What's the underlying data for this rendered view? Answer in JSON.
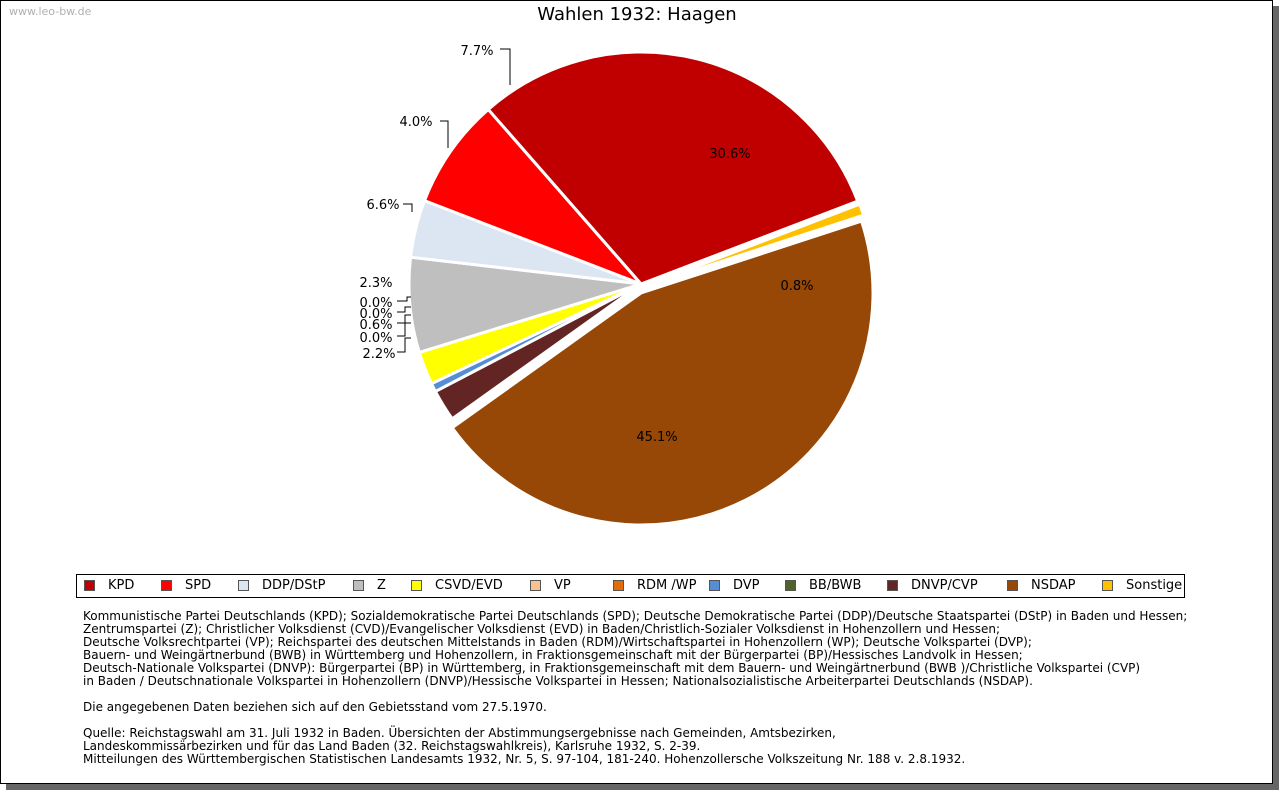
{
  "watermark": "www.leo-bw.de",
  "chart_data": {
    "type": "pie",
    "title": "Wahlen 1932: Haagen",
    "slices": [
      {
        "name": "KPD",
        "value": 30.6,
        "label": "30.6%",
        "color": "#c00000"
      },
      {
        "name": "Sonstige",
        "value": 0.8,
        "label": "0.8%",
        "color": "#ffc000"
      },
      {
        "name": "NSDAP",
        "value": 45.1,
        "label": "45.1%",
        "color": "#974706"
      },
      {
        "name": "DNVP/CVP",
        "value": 2.2,
        "label": "2.2%",
        "color": "#632523"
      },
      {
        "name": "BB/BWB",
        "value": 0.0,
        "label": "0.0%",
        "color": "#4f6228"
      },
      {
        "name": "DVP",
        "value": 0.6,
        "label": "0.6%",
        "color": "#558ed5"
      },
      {
        "name": "RDM /WP",
        "value": 0.0,
        "label": "0.0%",
        "color": "#e46c0a"
      },
      {
        "name": "VP",
        "value": 0.0,
        "label": "0.0%",
        "color": "#fac090"
      },
      {
        "name": "CSVD/EVD",
        "value": 2.3,
        "label": "2.3%",
        "color": "#ffff00"
      },
      {
        "name": "Z",
        "value": 6.6,
        "label": "6.6%",
        "color": "#bfbfbf"
      },
      {
        "name": "DDP/DStP",
        "value": 4.0,
        "label": "4.0%",
        "color": "#dce6f2"
      },
      {
        "name": "SPD",
        "value": 7.7,
        "label": "7.7%",
        "color": "#ff0000"
      }
    ],
    "legend": [
      {
        "name": "KPD",
        "color": "#c00000"
      },
      {
        "name": "SPD",
        "color": "#ff0000"
      },
      {
        "name": "DDP/DStP",
        "color": "#dce6f2"
      },
      {
        "name": "Z",
        "color": "#bfbfbf"
      },
      {
        "name": "CSVD/EVD",
        "color": "#ffff00"
      },
      {
        "name": "VP",
        "color": "#fac090"
      },
      {
        "name": "RDM /WP",
        "color": "#e46c0a"
      },
      {
        "name": "DVP",
        "color": "#558ed5"
      },
      {
        "name": "BB/BWB",
        "color": "#4f6228"
      },
      {
        "name": "DNVP/CVP",
        "color": "#632523"
      },
      {
        "name": "NSDAP",
        "color": "#974706"
      },
      {
        "name": "Sonstige",
        "color": "#ffc000"
      }
    ],
    "legend_position": "bottom"
  },
  "notes": [
    "Kommunistische Partei Deutschlands (KPD); Sozialdemokratische Partei Deutschlands (SPD); Deutsche Demokratische Partei (DDP)/Deutsche Staatspartei (DStP) in Baden und Hessen;",
    "Zentrumspartei (Z); Christlicher Volksdienst (CVD)/Evangelischer Volksdienst (EVD) in Baden/Christlich-Sozialer Volksdienst in Hohenzollern und Hessen;",
    "Deutsche Volksrechtpartei (VP); Reichspartei des deutschen Mittelstands in Baden (RDM)/Wirtschaftspartei in Hohenzollern (WP); Deutsche Volkspartei (DVP);",
    "Bauern- und Weingärtnerbund (BWB) in Württemberg und Hohenzollern, in Fraktionsgemeinschaft mit der Bürgerpartei (BP)/Hessisches Landvolk in Hessen;",
    "Deutsch-Nationale Volkspartei (DNVP): Bürgerpartei (BP) in Württemberg, in Fraktionsgemeinschaft mit dem Bauern- und Weingärtnerbund (BWB )/Christliche Volkspartei (CVP)",
    "in Baden / Deutschnationale Volkspartei in Hohenzollern (DNVP)/Hessische Volkspartei in Hessen; Nationalsozialistische Arbeiterpartei Deutschlands (NSDAP).",
    "",
    "Die angegebenen Daten beziehen sich auf den Gebietsstand vom 27.5.1970.",
    "",
    "Quelle: Reichstagswahl am 31. Juli 1932 in Baden. Übersichten der Abstimmungsergebnisse nach Gemeinden, Amtsbezirken,",
    "Landeskommissärbezirken und für das Land Baden (32. Reichstagswahlkreis), Karlsruhe 1932, S. 2-39.",
    "Mitteilungen des Württembergischen Statistischen Landesamts 1932, Nr. 5, S. 97-104, 181-240. Hohenzollersche Volkszeitung Nr. 188 v. 2.8.1932."
  ]
}
